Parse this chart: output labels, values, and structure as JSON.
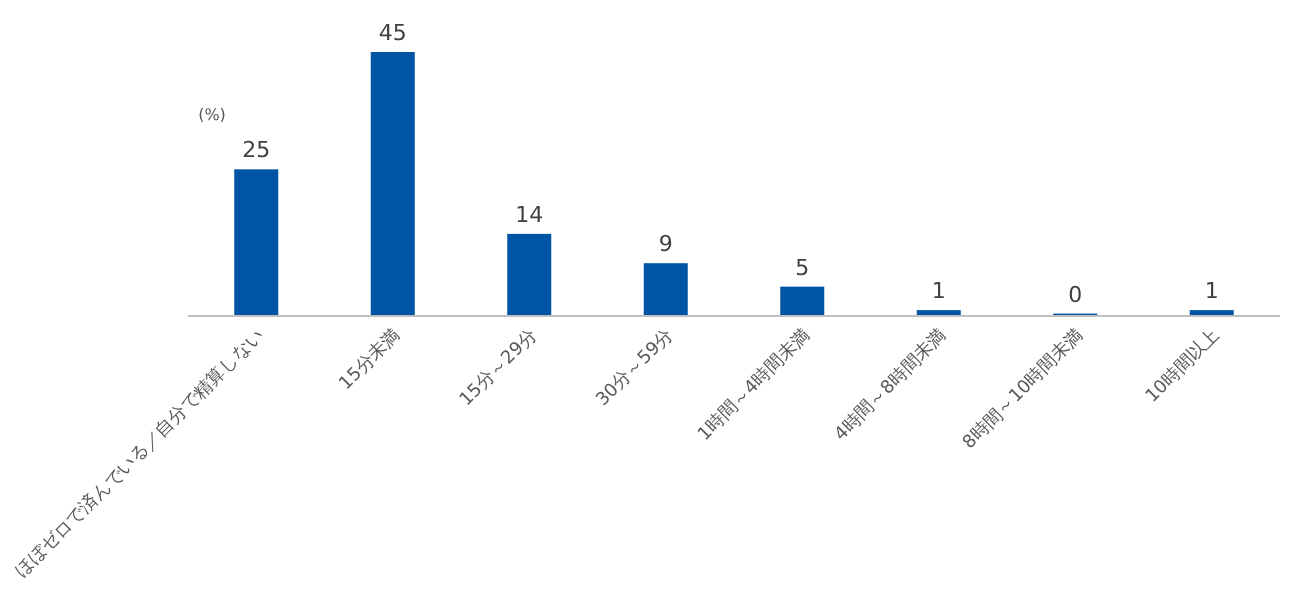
{
  "chart_data": {
    "type": "bar",
    "ylabel": "(%)",
    "categories": [
      "ほぼゼロで済んでいる／自分で精算しない",
      "15分未満",
      "15分～29分",
      "30分～59分",
      "1時間～4時間未満",
      "4時間～8時間未満",
      "8時間～10時間未満",
      "10時間以上"
    ],
    "values": [
      25,
      45,
      14,
      9,
      5,
      1,
      0,
      1
    ],
    "color": "#0054a6",
    "data_labels": true
  }
}
